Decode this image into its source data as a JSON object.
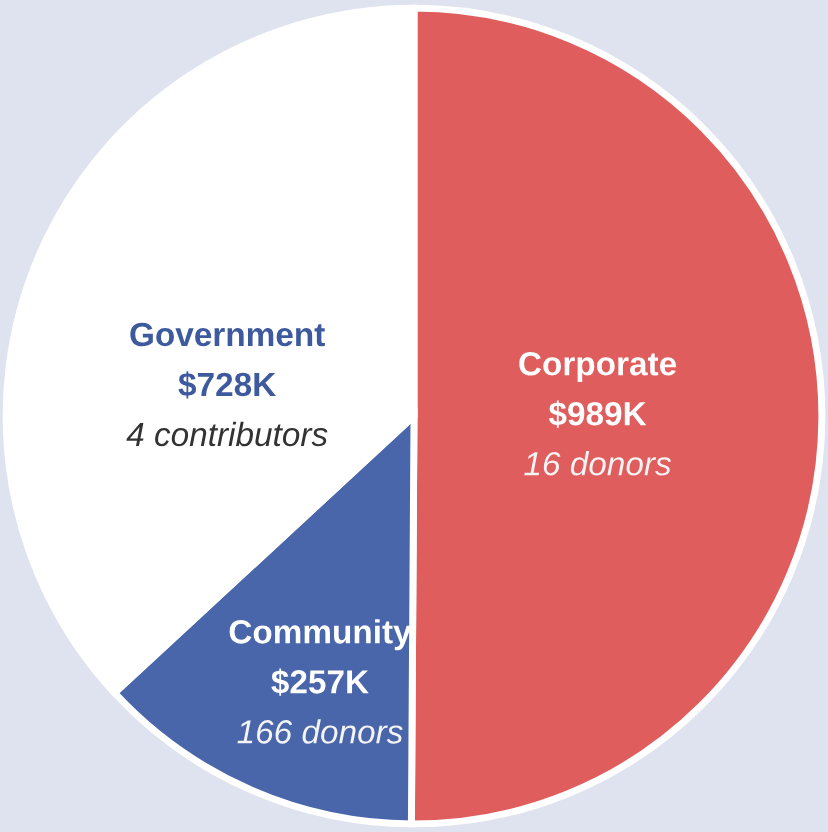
{
  "chart_data": {
    "type": "pie",
    "categories": [
      "Corporate",
      "Community",
      "Government"
    ],
    "values": [
      989,
      257,
      728
    ],
    "colors": [
      "#e05d5d",
      "#4a66aa",
      "#ffffff"
    ],
    "value_labels": [
      "$989K",
      "$257K",
      "$728K"
    ],
    "annotations": [
      {
        "text": "16 donors",
        "x": "Corporate"
      },
      {
        "text": "166 donors",
        "x": "Community"
      },
      {
        "text": "4 contributors",
        "x": "Government"
      }
    ],
    "legend": false
  }
}
